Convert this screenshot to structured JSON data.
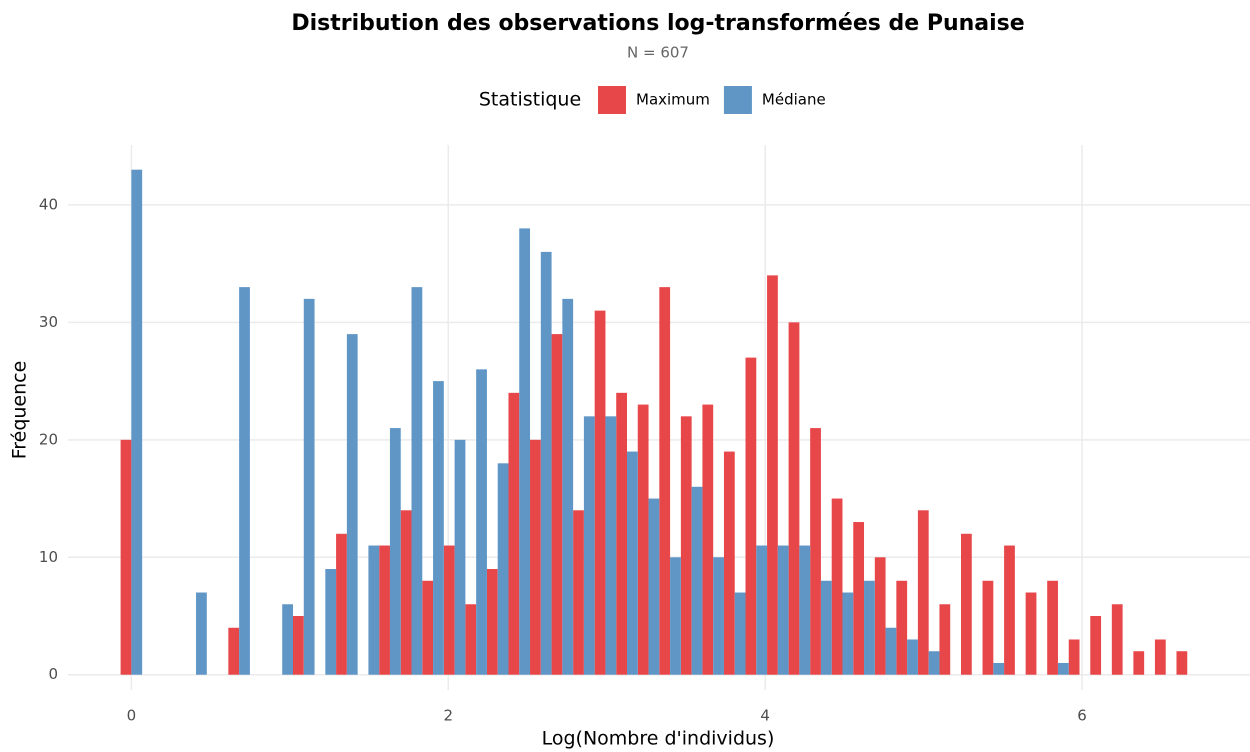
{
  "chart_data": {
    "type": "histogram",
    "title": "Distribution des observations log-transformées de Punaise",
    "subtitle": "N = 607",
    "x_label": "Log(Nombre d'individus)",
    "y_label": "Fréquence",
    "legend_title": "Statistique",
    "legend_position": "top",
    "grid": true,
    "bins": [
      -0.068,
      0.068,
      0.204,
      0.34,
      0.476,
      0.612,
      0.748,
      0.884,
      1.02,
      1.156,
      1.292,
      1.428,
      1.564,
      1.7,
      1.836,
      1.972,
      2.108,
      2.244,
      2.38,
      2.516,
      2.652,
      2.788,
      2.924,
      3.06,
      3.196,
      3.332,
      3.468,
      3.604,
      3.74,
      3.876,
      4.012,
      4.148,
      4.284,
      4.42,
      4.556,
      4.692,
      4.828,
      4.964,
      5.1,
      5.236,
      5.372,
      5.508,
      5.644,
      5.78,
      5.916,
      6.052,
      6.188,
      6.324,
      6.46,
      6.596,
      6.732
    ],
    "series": [
      {
        "name": "Maximum",
        "color": "#e8474a",
        "values": [
          20,
          0,
          0,
          0,
          0,
          4,
          0,
          0,
          5,
          0,
          12,
          0,
          11,
          14,
          8,
          11,
          6,
          9,
          24,
          20,
          29,
          14,
          31,
          24,
          23,
          33,
          22,
          23,
          19,
          27,
          34,
          30,
          21,
          15,
          13,
          10,
          8,
          14,
          6,
          12,
          8,
          11,
          7,
          8,
          3,
          5,
          6,
          2,
          3,
          2
        ]
      },
      {
        "name": "Médiane",
        "color": "#6096c6",
        "values": [
          43,
          0,
          0,
          7,
          0,
          33,
          0,
          6,
          32,
          9,
          29,
          11,
          21,
          33,
          25,
          20,
          26,
          18,
          38,
          36,
          32,
          22,
          22,
          19,
          15,
          10,
          16,
          10,
          7,
          11,
          11,
          11,
          8,
          7,
          8,
          4,
          3,
          2,
          0,
          0,
          1,
          0,
          0,
          1,
          0,
          0,
          0,
          0,
          0,
          0
        ]
      }
    ],
    "xlim": [
      -0.4,
      7.06
    ],
    "ylim": [
      -1.3,
      45.1
    ],
    "xticks": [
      0,
      2,
      4,
      6
    ],
    "yticks": [
      0,
      10,
      20,
      30,
      40
    ]
  }
}
